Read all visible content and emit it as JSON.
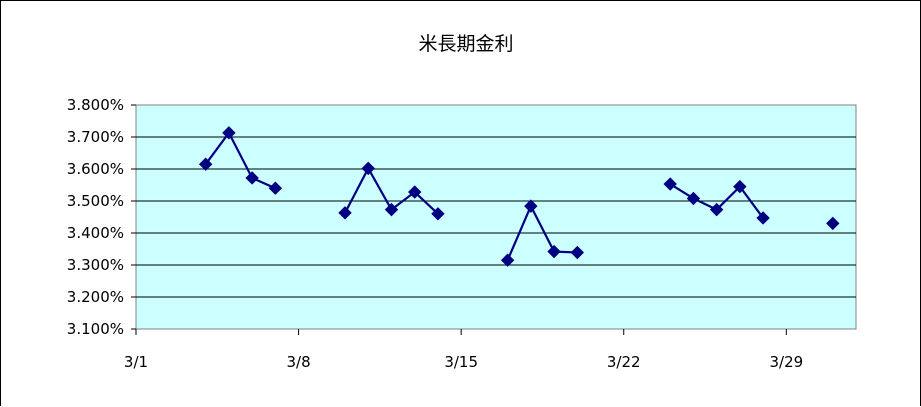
{
  "chart_data": {
    "type": "line",
    "title": "米長期金利",
    "xlabel": "",
    "ylabel": "",
    "x_ticks": [
      {
        "day": 1,
        "label": "3/1"
      },
      {
        "day": 8,
        "label": "3/8"
      },
      {
        "day": 15,
        "label": "3/15"
      },
      {
        "day": 22,
        "label": "3/22"
      },
      {
        "day": 29,
        "label": "3/29"
      }
    ],
    "y_ticks": [
      "3.800%",
      "3.700%",
      "3.600%",
      "3.500%",
      "3.400%",
      "3.300%",
      "3.200%",
      "3.100%"
    ],
    "xlim": [
      1,
      32
    ],
    "ylim": [
      3.1,
      3.8
    ],
    "grid": true,
    "legend": "none",
    "colors": {
      "plot_background": "#ccffff",
      "series_line": "#000080",
      "marker": "#000080",
      "gridline": "#000000"
    },
    "series": [
      {
        "segments": [
          [
            {
              "x": 4,
              "y": 3.615
            },
            {
              "x": 5,
              "y": 3.713
            },
            {
              "x": 6,
              "y": 3.572
            },
            {
              "x": 7,
              "y": 3.54
            }
          ],
          [
            {
              "x": 10,
              "y": 3.463
            },
            {
              "x": 11,
              "y": 3.602
            },
            {
              "x": 12,
              "y": 3.473
            },
            {
              "x": 13,
              "y": 3.528
            },
            {
              "x": 14,
              "y": 3.46
            }
          ],
          [
            {
              "x": 17,
              "y": 3.315
            },
            {
              "x": 18,
              "y": 3.484
            },
            {
              "x": 19,
              "y": 3.342
            },
            {
              "x": 20,
              "y": 3.339
            }
          ],
          [
            {
              "x": 24,
              "y": 3.553
            },
            {
              "x": 25,
              "y": 3.508
            },
            {
              "x": 26,
              "y": 3.473
            },
            {
              "x": 27,
              "y": 3.545
            },
            {
              "x": 28,
              "y": 3.447
            }
          ],
          [
            {
              "x": 31,
              "y": 3.43
            }
          ]
        ]
      }
    ]
  }
}
